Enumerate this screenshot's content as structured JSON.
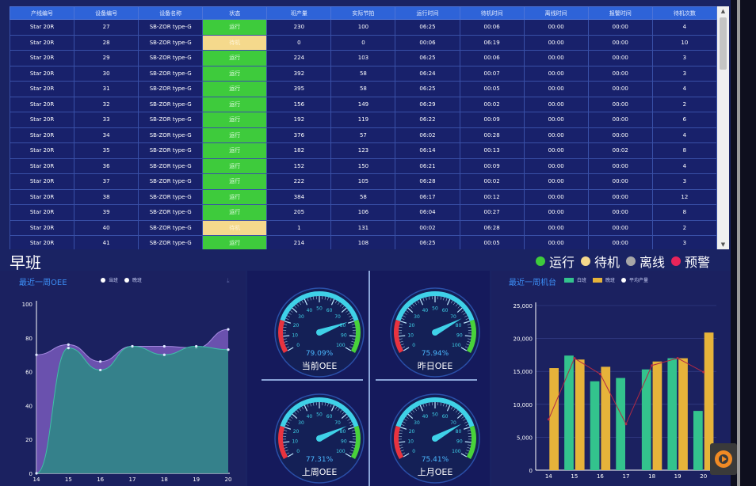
{
  "table": {
    "headers": [
      "产线编号",
      "设备编号",
      "设备名称",
      "状态",
      "班产量",
      "实际节拍",
      "运行时间",
      "待机时间",
      "离线时间",
      "报警时间",
      "待机次数"
    ],
    "rows": [
      [
        "Star 20R",
        "27",
        "SB-ZOR type-G",
        "运行",
        "230",
        "100",
        "06:25",
        "00:06",
        "00:00",
        "00:00",
        "4"
      ],
      [
        "Star 20R",
        "28",
        "SB-ZOR type-G",
        "待机",
        "0",
        "0",
        "00:06",
        "06:19",
        "00:00",
        "00:00",
        "10"
      ],
      [
        "Star 20R",
        "29",
        "SB-ZOR type-G",
        "运行",
        "224",
        "103",
        "06:25",
        "00:06",
        "00:00",
        "00:00",
        "3"
      ],
      [
        "Star 20R",
        "30",
        "SB-ZOR type-G",
        "运行",
        "392",
        "58",
        "06:24",
        "00:07",
        "00:00",
        "00:00",
        "3"
      ],
      [
        "Star 20R",
        "31",
        "SB-ZOR type-G",
        "运行",
        "395",
        "58",
        "06:25",
        "00:05",
        "00:00",
        "00:00",
        "4"
      ],
      [
        "Star 20R",
        "32",
        "SB-ZOR type-G",
        "运行",
        "156",
        "149",
        "06:29",
        "00:02",
        "00:00",
        "00:00",
        "2"
      ],
      [
        "Star 20R",
        "33",
        "SB-ZOR type-G",
        "运行",
        "192",
        "119",
        "06:22",
        "00:09",
        "00:00",
        "00:00",
        "6"
      ],
      [
        "Star 20R",
        "34",
        "SB-ZOR type-G",
        "运行",
        "376",
        "57",
        "06:02",
        "00:28",
        "00:00",
        "00:00",
        "4"
      ],
      [
        "Star 20R",
        "35",
        "SB-ZOR type-G",
        "运行",
        "182",
        "123",
        "06:14",
        "00:13",
        "00:00",
        "00:02",
        "8"
      ],
      [
        "Star 20R",
        "36",
        "SB-ZOR type-G",
        "运行",
        "152",
        "150",
        "06:21",
        "00:09",
        "00:00",
        "00:00",
        "4"
      ],
      [
        "Star 20R",
        "37",
        "SB-ZOR type-G",
        "运行",
        "222",
        "105",
        "06:28",
        "00:02",
        "00:00",
        "00:00",
        "3"
      ],
      [
        "Star 20R",
        "38",
        "SB-ZOR type-G",
        "运行",
        "384",
        "58",
        "06:17",
        "00:12",
        "00:00",
        "00:00",
        "12"
      ],
      [
        "Star 20R",
        "39",
        "SB-ZOR type-G",
        "运行",
        "205",
        "106",
        "06:04",
        "00:27",
        "00:00",
        "00:00",
        "8"
      ],
      [
        "Star 20R",
        "40",
        "SB-ZOR type-G",
        "待机",
        "1",
        "131",
        "00:02",
        "06:28",
        "00:00",
        "00:00",
        "2"
      ],
      [
        "Star 20R",
        "41",
        "SB-ZOR type-G",
        "运行",
        "214",
        "108",
        "06:25",
        "00:05",
        "00:00",
        "00:00",
        "3"
      ]
    ]
  },
  "shift_title": "早班",
  "status_legend": [
    {
      "label": "运行",
      "color": "#3ecb3c"
    },
    {
      "label": "待机",
      "color": "#f5d98c"
    },
    {
      "label": "离线",
      "color": "#a7a7a7"
    },
    {
      "label": "预警",
      "color": "#e8245a"
    }
  ],
  "oee_week": {
    "title": "最近一周OEE",
    "legend": [
      "当班",
      "晚班"
    ],
    "icon": "download-icon"
  },
  "gauges": [
    {
      "label": "当前OEE",
      "value": "79.09%",
      "pct": 79.09
    },
    {
      "label": "昨日OEE",
      "value": "75.94%",
      "pct": 75.94
    },
    {
      "label": "上周OEE",
      "value": "77.31%",
      "pct": 77.31
    },
    {
      "label": "上月OEE",
      "value": "75.41%",
      "pct": 75.41
    }
  ],
  "gauge_ticks": [
    "0",
    "10",
    "20",
    "30",
    "40",
    "50",
    "60",
    "70",
    "80",
    "90",
    "100"
  ],
  "output_week": {
    "title": "最近一周机台",
    "legend": [
      "白班",
      "晚班",
      "平均产量"
    ]
  },
  "chart_data": [
    {
      "type": "area",
      "title": "最近一周OEE",
      "x": [
        14,
        15,
        16,
        17,
        18,
        19,
        20
      ],
      "series": [
        {
          "name": "当班",
          "values": [
            70,
            76,
            66,
            75,
            75,
            74,
            85
          ]
        },
        {
          "name": "晚班",
          "values": [
            0,
            74,
            61,
            75,
            70,
            75,
            73
          ]
        }
      ],
      "ylim": [
        0,
        100
      ],
      "yticks": [
        0,
        20,
        40,
        60,
        80,
        100
      ],
      "colors": {
        "当班": "#8661c8",
        "晚班": "#2c8a85"
      }
    },
    {
      "type": "bar",
      "title": "最近一周机台",
      "categories": [
        "14",
        "15",
        "16",
        "17",
        "18",
        "19",
        "20"
      ],
      "series": [
        {
          "name": "白班",
          "values": [
            0,
            17400,
            13500,
            14000,
            15300,
            17000,
            9000
          ]
        },
        {
          "name": "晚班",
          "values": [
            15500,
            16800,
            15700,
            0,
            16500,
            17000,
            20900
          ]
        },
        {
          "name": "平均产量",
          "values": [
            7700,
            17000,
            14600,
            7000,
            15900,
            17000,
            14900
          ]
        }
      ],
      "ylim": [
        0,
        25000
      ],
      "yticks": [
        "0",
        "5,000",
        "10,000",
        "15,000",
        "20,000",
        "25,000"
      ],
      "colors": {
        "白班": "#33c38d",
        "晚班": "#e6b33a",
        "平均产量": "#b02a45"
      }
    }
  ]
}
